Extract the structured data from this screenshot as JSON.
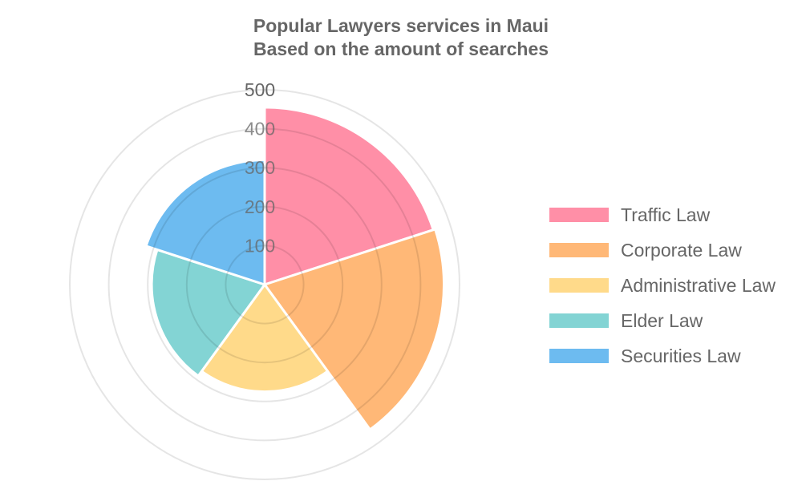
{
  "chart_data": {
    "type": "polarArea",
    "title": [
      "Popular Lawyers services in Maui",
      "Based on the amount of searches"
    ],
    "categories": [
      "Traffic Law",
      "Corporate Law",
      "Administrative Law",
      "Elder Law",
      "Securities Law"
    ],
    "values": [
      455,
      460,
      275,
      290,
      320
    ],
    "colors": [
      "#ff8fa7",
      "#ffb877",
      "#ffda8a",
      "#83d4d4",
      "#6dbbf0"
    ],
    "r_ticks": [
      "100",
      "200",
      "300",
      "400",
      "500"
    ],
    "r_range": [
      0,
      500
    ],
    "grid": true,
    "legend_position": "right"
  }
}
